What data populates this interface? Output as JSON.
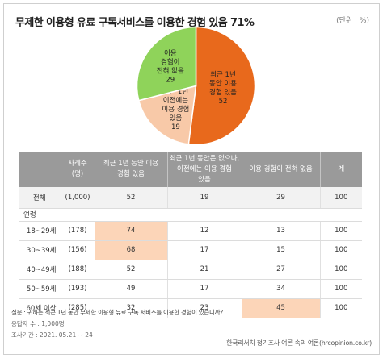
{
  "title": "무제한 이용형 유료 구독서비스를 이용한 경험 있음 71%",
  "unit": "(단위 : %)",
  "chart_data": [
    {
      "type": "pie",
      "slices": [
        {
          "label_lines": [
            "최근 1년",
            "동안 이용",
            "경험 있음"
          ],
          "value": 52,
          "color": "#e8691c"
        },
        {
          "label_lines": [
            "최근 1년",
            "이전에는",
            "이용 경험",
            "있음"
          ],
          "value": 19,
          "color": "#f8c9a8"
        },
        {
          "label_lines": [
            "이용",
            "경험이",
            "전혀 없음"
          ],
          "value": 29,
          "color": "#8fd35a"
        }
      ]
    },
    {
      "type": "table",
      "columns": [
        "",
        "사례수\n(명)",
        "최근 1년 동안 이용\n경험 있음",
        "최근 1년 동안은 없으나,\n이전에는 이용 경험\n있음",
        "이용 경험이 전혀 없음",
        "계"
      ],
      "total_row": {
        "label": "전체",
        "n": "(1,000)",
        "values": [
          52,
          19,
          29,
          100
        ]
      },
      "section_label": "연령",
      "rows": [
        {
          "label": "18~29세",
          "n": "(178)",
          "values": [
            74,
            12,
            13,
            100
          ],
          "highlight": [
            0
          ]
        },
        {
          "label": "30~39세",
          "n": "(156)",
          "values": [
            68,
            17,
            15,
            100
          ],
          "highlight": [
            0
          ]
        },
        {
          "label": "40~49세",
          "n": "(188)",
          "values": [
            52,
            21,
            27,
            100
          ],
          "highlight": []
        },
        {
          "label": "50~59세",
          "n": "(193)",
          "values": [
            49,
            17,
            34,
            100
          ],
          "highlight": []
        },
        {
          "label": "60세 이상",
          "n": "(285)",
          "values": [
            32,
            23,
            45,
            100
          ],
          "highlight": [
            2
          ]
        }
      ]
    }
  ],
  "footnotes": {
    "question": "질문 : 귀하는 최근 1년 동안 무제한 이용형 유료 구독 서비스를 이용한 경험이 있습니까?",
    "respondents": "응답자 수 : 1,000명",
    "period": "조사기간 : 2021. 05.21 ~ 24"
  },
  "source": "한국리서치 정기조사 여론 속의 여론(hrcopinion.co.kr)"
}
